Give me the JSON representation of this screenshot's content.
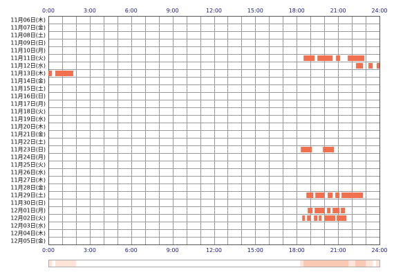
{
  "chart_data": {
    "type": "heatmap",
    "x_ticks": [
      "0:00",
      "3:00",
      "6:00",
      "9:00",
      "12:00",
      "15:00",
      "18:00",
      "21:00",
      "24:00"
    ],
    "x_range_hours": [
      0,
      24
    ],
    "grid": true,
    "rows": [
      {
        "label": "11月06日(木)",
        "segments": []
      },
      {
        "label": "11月07日(金)",
        "segments": []
      },
      {
        "label": "11月08日(土)",
        "segments": []
      },
      {
        "label": "11月09日(日)",
        "segments": []
      },
      {
        "label": "11月10日(月)",
        "segments": []
      },
      {
        "label": "11月11日(火)",
        "segments": [
          [
            18.5,
            19.3
          ],
          [
            19.5,
            20.6
          ],
          [
            20.85,
            21.15
          ],
          [
            21.7,
            22.9
          ]
        ]
      },
      {
        "label": "11月12日(水)",
        "segments": [
          [
            22.3,
            22.8
          ],
          [
            23.2,
            23.5
          ],
          [
            23.8,
            24.0
          ]
        ]
      },
      {
        "label": "11月13日(木)",
        "segments": [
          [
            0.0,
            0.25
          ],
          [
            0.5,
            1.8
          ]
        ]
      },
      {
        "label": "11月14日(金)",
        "segments": []
      },
      {
        "label": "11月15日(土)",
        "segments": []
      },
      {
        "label": "11月16日(日)",
        "segments": []
      },
      {
        "label": "11月17日(月)",
        "segments": []
      },
      {
        "label": "11月18日(火)",
        "segments": []
      },
      {
        "label": "11月19日(水)",
        "segments": []
      },
      {
        "label": "11月20日(木)",
        "segments": []
      },
      {
        "label": "11月21日(金)",
        "segments": []
      },
      {
        "label": "11月22日(土)",
        "segments": []
      },
      {
        "label": "11月23日(日)",
        "segments": [
          [
            18.3,
            19.1
          ],
          [
            19.9,
            20.7
          ]
        ]
      },
      {
        "label": "11月24日(月)",
        "segments": []
      },
      {
        "label": "11月25日(火)",
        "segments": []
      },
      {
        "label": "11月26日(水)",
        "segments": []
      },
      {
        "label": "11月27日(木)",
        "segments": []
      },
      {
        "label": "11月28日(金)",
        "segments": []
      },
      {
        "label": "11月29日(土)",
        "segments": [
          [
            18.7,
            19.2
          ],
          [
            19.35,
            20.0
          ],
          [
            20.25,
            20.6
          ],
          [
            20.8,
            21.1
          ],
          [
            21.25,
            22.8
          ]
        ]
      },
      {
        "label": "11月30日(日)",
        "segments": []
      },
      {
        "label": "12月01日(月)",
        "segments": [
          [
            18.8,
            19.15
          ],
          [
            19.3,
            20.0
          ],
          [
            20.2,
            20.45
          ],
          [
            20.6,
            21.1
          ],
          [
            21.2,
            21.5
          ]
        ]
      },
      {
        "label": "12月02日(火)",
        "segments": [
          [
            18.4,
            18.6
          ],
          [
            18.75,
            19.0
          ],
          [
            19.25,
            19.5
          ],
          [
            19.6,
            19.8
          ],
          [
            20.0,
            20.8
          ],
          [
            20.9,
            21.6
          ]
        ]
      },
      {
        "label": "12月03日(水)",
        "segments": []
      },
      {
        "label": "12月04日(木)",
        "segments": []
      },
      {
        "label": "12月05日(金)",
        "segments": []
      }
    ],
    "colors": {
      "segment": "#f07050",
      "grid": "#999999",
      "border": "#555555",
      "summary_fill": "#f9c9b4",
      "summary_light": "#fde3d8",
      "summary_border": "#aaaaaa"
    }
  }
}
